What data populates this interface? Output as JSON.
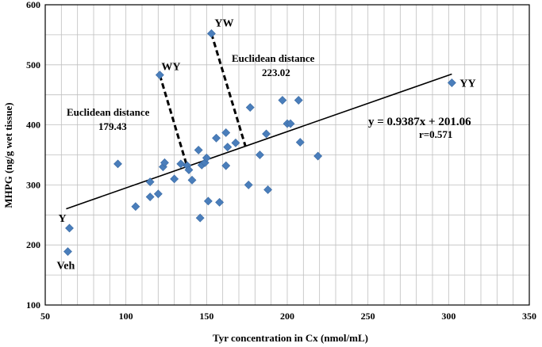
{
  "chart_data": {
    "type": "scatter",
    "xlabel": "Tyr concentration in Cx (nmol/mL)",
    "ylabel": "MHPG (ng/g wet tissue)",
    "xlim": [
      50,
      350
    ],
    "ylim": [
      100,
      600
    ],
    "xticks": [
      50,
      100,
      150,
      200,
      250,
      300,
      350
    ],
    "yticks": [
      100,
      200,
      300,
      400,
      500,
      600
    ],
    "grid": true,
    "marker_color": "#4a7ebb",
    "points": [
      {
        "x": 65,
        "y": 228,
        "label": "Y"
      },
      {
        "x": 64,
        "y": 189,
        "label": "Veh"
      },
      {
        "x": 121,
        "y": 483,
        "label": "WY"
      },
      {
        "x": 153,
        "y": 552,
        "label": "YW"
      },
      {
        "x": 302,
        "y": 470,
        "label": "YY"
      },
      {
        "x": 95,
        "y": 335
      },
      {
        "x": 106,
        "y": 264
      },
      {
        "x": 115,
        "y": 305
      },
      {
        "x": 115,
        "y": 280
      },
      {
        "x": 120,
        "y": 285
      },
      {
        "x": 123,
        "y": 330
      },
      {
        "x": 124,
        "y": 337
      },
      {
        "x": 130,
        "y": 310
      },
      {
        "x": 134,
        "y": 335
      },
      {
        "x": 138,
        "y": 332
      },
      {
        "x": 139,
        "y": 325
      },
      {
        "x": 141,
        "y": 308
      },
      {
        "x": 145,
        "y": 358
      },
      {
        "x": 146,
        "y": 245
      },
      {
        "x": 147,
        "y": 333
      },
      {
        "x": 149,
        "y": 337
      },
      {
        "x": 150,
        "y": 345
      },
      {
        "x": 151,
        "y": 273
      },
      {
        "x": 156,
        "y": 378
      },
      {
        "x": 158,
        "y": 271
      },
      {
        "x": 162,
        "y": 387
      },
      {
        "x": 162,
        "y": 332
      },
      {
        "x": 163,
        "y": 363
      },
      {
        "x": 168,
        "y": 370
      },
      {
        "x": 176,
        "y": 300
      },
      {
        "x": 177,
        "y": 429
      },
      {
        "x": 183,
        "y": 350
      },
      {
        "x": 187,
        "y": 385
      },
      {
        "x": 188,
        "y": 292
      },
      {
        "x": 197,
        "y": 441
      },
      {
        "x": 200,
        "y": 402
      },
      {
        "x": 202,
        "y": 402
      },
      {
        "x": 207,
        "y": 441
      },
      {
        "x": 208,
        "y": 371
      },
      {
        "x": 219,
        "y": 348
      }
    ],
    "trendline": {
      "slope": 0.9387,
      "intercept": 201.06,
      "x_range": [
        63,
        302
      ],
      "equation": "y = 0.9387x + 201.06",
      "r_text": "r=0.571"
    },
    "distance_lines": [
      {
        "from": "WY",
        "from_x": 121,
        "from_y": 483,
        "to_x": 138,
        "to_y": 330
      },
      {
        "from": "YW",
        "from_x": 153,
        "from_y": 552,
        "to_x": 174,
        "to_y": 365
      }
    ],
    "annotations": {
      "wy_distance_title": "Euclidean distance",
      "wy_distance_value": "179.43",
      "yw_distance_title": "Euclidean distance",
      "yw_distance_value": "223.02"
    }
  }
}
